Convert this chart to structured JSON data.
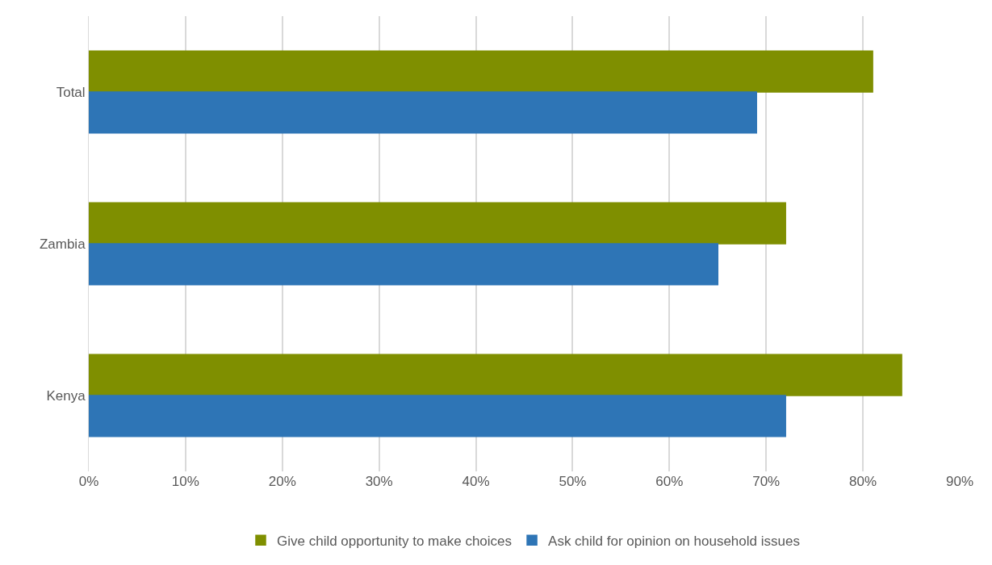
{
  "chart_data": {
    "type": "bar",
    "orientation": "horizontal",
    "categories": [
      "Total",
      "Zambia",
      "Kenya"
    ],
    "series": [
      {
        "name": "Give child opportunity to make choices",
        "color": "#7f8f00",
        "values": [
          81,
          72,
          84
        ]
      },
      {
        "name": "Ask child for opinion on household issues",
        "color": "#2e75b6",
        "values": [
          69,
          65,
          72
        ]
      }
    ],
    "xlim": [
      0,
      90
    ],
    "xticks": [
      {
        "value": 0,
        "label": "0%"
      },
      {
        "value": 10,
        "label": "10%"
      },
      {
        "value": 20,
        "label": "20%"
      },
      {
        "value": 30,
        "label": "30%"
      },
      {
        "value": 40,
        "label": "40%"
      },
      {
        "value": 50,
        "label": "50%"
      },
      {
        "value": 60,
        "label": "60%"
      },
      {
        "value": 70,
        "label": "70%"
      },
      {
        "value": 80,
        "label": "80%"
      },
      {
        "value": 90,
        "label": "90%"
      }
    ],
    "grid": "x",
    "legend": "bottom"
  }
}
